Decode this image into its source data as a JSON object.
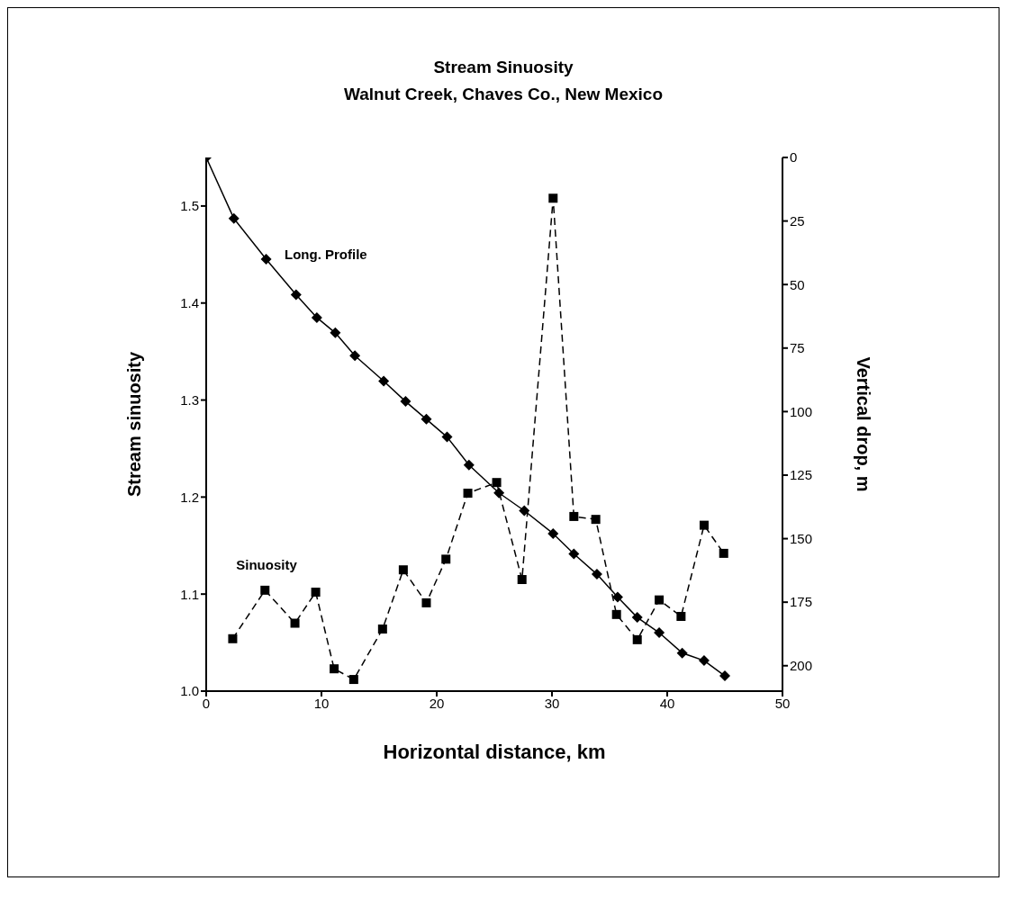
{
  "chart_data": {
    "type": "line",
    "title": "Stream Sinuosity",
    "subtitle": "Walnut Creek, Chaves Co., New Mexico",
    "xlabel": "Horizontal distance, km",
    "ylabel": "Stream sinuosity",
    "y2label": "Vertical drop, m",
    "xlim": [
      0,
      50
    ],
    "xticks": [
      0,
      10,
      20,
      30,
      40,
      50
    ],
    "ylim": [
      1.0,
      1.55
    ],
    "yticks": [
      {
        "value": 1,
        "label": "1.0"
      },
      1.1,
      1.2,
      1.3,
      1.4,
      1.5
    ],
    "y2lim": [
      210,
      0
    ],
    "y2ticks": [
      0,
      25,
      50,
      75,
      100,
      125,
      150,
      175,
      200
    ],
    "grid": false,
    "legend": false,
    "series": [
      {
        "name": "Long. Profile",
        "axis": "y2",
        "color": "#000000",
        "marker": "diamond",
        "line_style": "solid",
        "x": [
          0,
          2.4,
          5.2,
          7.8,
          9.6,
          11.2,
          12.9,
          15.4,
          17.3,
          19.1,
          20.9,
          22.8,
          25.4,
          27.6,
          30.1,
          31.9,
          33.9,
          35.7,
          37.4,
          39.3,
          41.3,
          43.2,
          45.0
        ],
        "values": [
          0,
          24,
          40,
          54,
          63,
          69,
          78,
          88,
          96,
          103,
          110,
          121,
          132,
          139,
          148,
          156,
          164,
          173,
          181,
          187,
          195,
          198,
          204
        ]
      },
      {
        "name": "Sinuosity",
        "color": "#000000",
        "marker": "square",
        "line_style": "dashed",
        "x": [
          2.3,
          5.1,
          7.7,
          9.5,
          11.1,
          12.8,
          15.3,
          17.1,
          19.1,
          20.8,
          22.7,
          25.2,
          27.4,
          30.1,
          31.9,
          33.8,
          35.6,
          37.4,
          39.3,
          41.2,
          43.2,
          44.9
        ],
        "values": [
          1.054,
          1.104,
          1.07,
          1.102,
          1.023,
          1.012,
          1.064,
          1.125,
          1.091,
          1.136,
          1.204,
          1.215,
          1.115,
          1.508,
          1.18,
          1.177,
          1.079,
          1.053,
          1.094,
          1.077,
          1.171,
          1.142
        ]
      }
    ]
  }
}
